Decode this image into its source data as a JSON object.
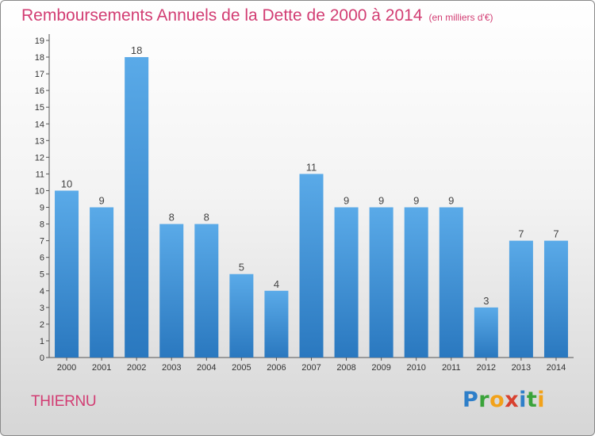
{
  "header": {
    "title": "Remboursements Annuels de la Dette de 2000 à 2014",
    "subtitle": "(en milliers d'€)"
  },
  "commune": "THIERNU",
  "logo": {
    "text": "Proxiti",
    "letters": [
      "P",
      "r",
      "o",
      "x",
      "i",
      "t",
      "i"
    ]
  },
  "chart_data": {
    "type": "bar",
    "title": "Remboursements Annuels de la Dette de 2000 à 2014",
    "subtitle": "(en milliers d'€)",
    "xlabel": "",
    "ylabel": "",
    "categories": [
      "2000",
      "2001",
      "2002",
      "2003",
      "2004",
      "2005",
      "2006",
      "2007",
      "2008",
      "2009",
      "2010",
      "2011",
      "2012",
      "2013",
      "2014"
    ],
    "values": [
      10,
      9,
      18,
      8,
      8,
      5,
      4,
      11,
      9,
      9,
      9,
      9,
      3,
      7,
      7
    ],
    "ylim": [
      0,
      19
    ],
    "yticks": [
      0,
      1,
      2,
      3,
      4,
      5,
      6,
      7,
      8,
      9,
      10,
      11,
      12,
      13,
      14,
      15,
      16,
      17,
      18,
      19
    ],
    "grid": false,
    "legend": "none",
    "colors": {
      "bar_light": "#5aaae8",
      "bar_dark": "#2a78bf",
      "title": "#d23d73",
      "axis": "#333333"
    }
  }
}
